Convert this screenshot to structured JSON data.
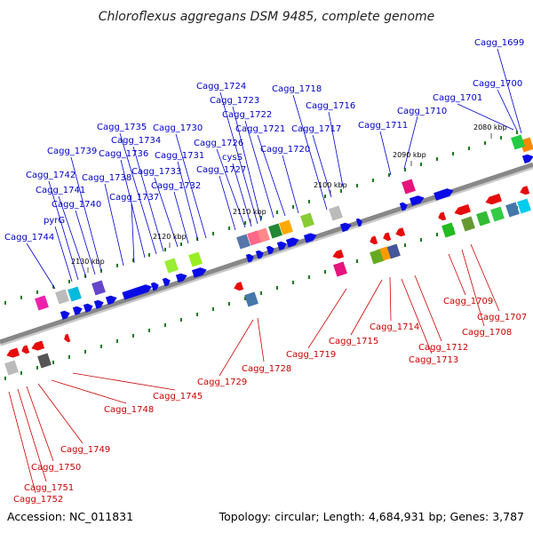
{
  "title": "Chloroflexus aggregans DSM 9485, complete genome",
  "accession": "Accession: NC_011831",
  "summary": "Topology: circular; Length: 4,684,931 bp; Genes: 3,787",
  "colors": {
    "forward_label": "#0000cc",
    "reverse_label": "#cc0000",
    "forward_gene": "#0a0ae6",
    "reverse_gene": "#e60a0a",
    "backbone": "#888888",
    "tick": "#1a7a1a"
  },
  "scale_marks": [
    "2080 kbp",
    "2090 kbp",
    "2100 kbp",
    "2110 kbp",
    "2120 kbp",
    "2130 kbp"
  ],
  "forward_labels": [
    "Cagg_1699",
    "Cagg_1700",
    "Cagg_1701",
    "Cagg_1710",
    "Cagg_1711",
    "Cagg_1716",
    "Cagg_1717",
    "Cagg_1718",
    "Cagg_1720",
    "Cagg_1721",
    "Cagg_1722",
    "Cagg_1723",
    "Cagg_1724",
    "cysS",
    "Cagg_1726",
    "Cagg_1727",
    "Cagg_1730",
    "Cagg_1731",
    "Cagg_1732",
    "Cagg_1733",
    "Cagg_1734",
    "Cagg_1735",
    "Cagg_1736",
    "Cagg_1737",
    "Cagg_1738",
    "Cagg_1739",
    "Cagg_1740",
    "Cagg_1741",
    "Cagg_1742",
    "pyrG",
    "Cagg_1744"
  ],
  "reverse_labels": [
    "Cagg_1707",
    "Cagg_1708",
    "Cagg_1709",
    "Cagg_1712",
    "Cagg_1713",
    "Cagg_1714",
    "Cagg_1715",
    "Cagg_1719",
    "Cagg_1728",
    "Cagg_1729",
    "Cagg_1745",
    "Cagg_1748",
    "Cagg_1749",
    "Cagg_1750",
    "Cagg_1751",
    "Cagg_1752"
  ]
}
